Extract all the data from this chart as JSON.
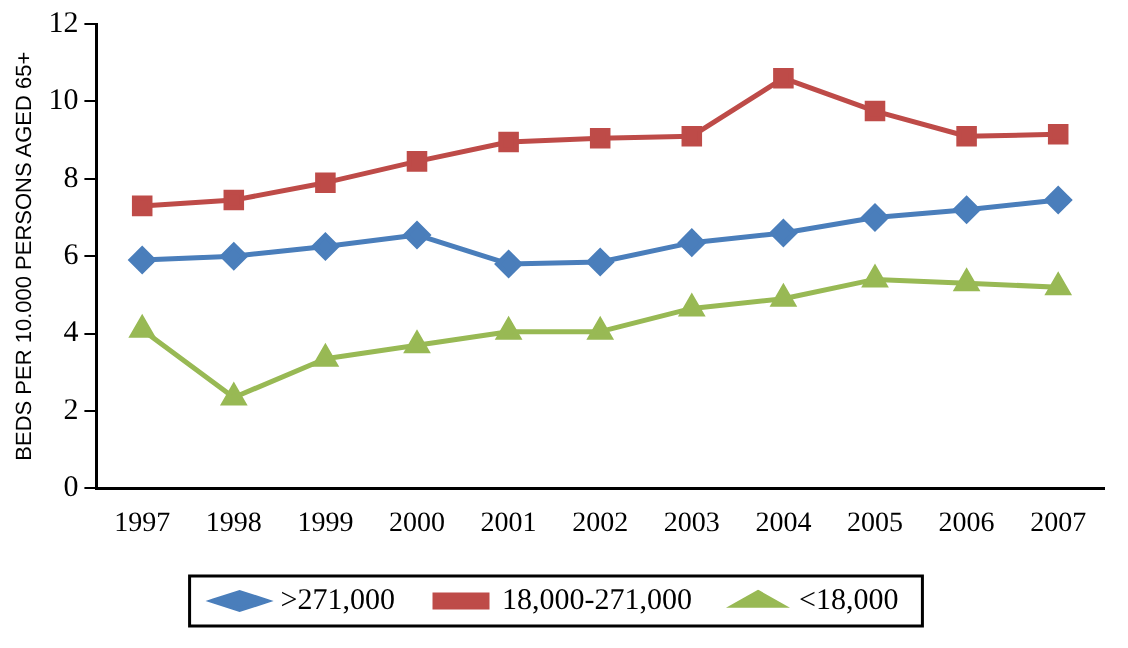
{
  "chart_data": {
    "type": "line",
    "ylabel": "BEDS PER 10.000 PERSONS AGED 65+",
    "categories": [
      "1997",
      "1998",
      "1999",
      "2000",
      "2001",
      "2002",
      "2003",
      "2004",
      "2005",
      "2006",
      "2007"
    ],
    "ylim": [
      0,
      12
    ],
    "yticks": [
      0,
      2,
      4,
      6,
      8,
      10,
      12
    ],
    "grid": false,
    "legend": "bottom",
    "line_style": "solid",
    "series": [
      {
        "name": ">271,000",
        "color": "#4a7ebb",
        "marker": "diamond",
        "values": [
          5.9,
          6.0,
          6.25,
          6.55,
          5.8,
          5.85,
          6.35,
          6.6,
          7.0,
          7.2,
          7.45
        ]
      },
      {
        "name": "18,000-271,000",
        "color": "#be4b48",
        "marker": "square",
        "values": [
          7.3,
          7.45,
          7.9,
          8.45,
          8.95,
          9.05,
          9.1,
          10.6,
          9.75,
          9.1,
          9.15
        ]
      },
      {
        "name": "<18,000",
        "color": "#98b954",
        "marker": "triangle",
        "values": [
          4.1,
          2.35,
          3.35,
          3.7,
          4.05,
          4.05,
          4.65,
          4.9,
          5.4,
          5.3,
          5.2
        ]
      }
    ]
  }
}
